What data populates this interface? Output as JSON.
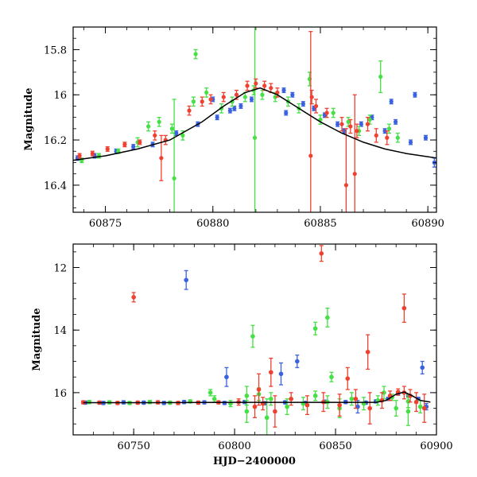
{
  "chart_data": [
    {
      "type": "scatter",
      "title": "",
      "xlabel": "",
      "ylabel": "Magnitude",
      "xlim": [
        60873.5,
        60890.4
      ],
      "ylim": [
        16.52,
        15.7
      ],
      "y_inverted": true,
      "grid": false,
      "x_ticks": [
        60875,
        60880,
        60885,
        60890
      ],
      "x_tick_labels": [
        "60875",
        "60880",
        "60885",
        "60890"
      ],
      "y_ticks": [
        15.8,
        16,
        16.2,
        16.4
      ],
      "y_tick_labels": [
        "15.8",
        "16",
        "16.2",
        "16.4"
      ],
      "model_curve": {
        "color": "#000000",
        "x": [
          60873.5,
          60875,
          60876.5,
          60878,
          60879.5,
          60880.5,
          60881.5,
          60882.2,
          60883,
          60884,
          60885,
          60886,
          60887,
          60888,
          60889,
          60890.4
        ],
        "y": [
          16.29,
          16.27,
          16.24,
          16.2,
          16.12,
          16.05,
          15.99,
          15.97,
          16.0,
          16.06,
          16.12,
          16.17,
          16.21,
          16.24,
          16.26,
          16.28
        ]
      },
      "series": [
        {
          "color": "#3a62e0",
          "x": [
            60873.7,
            60874.5,
            60875.5,
            60876.3,
            60877.2,
            60878.3,
            60879.3,
            60880.2,
            60880.8,
            60881.3,
            60881.8,
            60883.3,
            60883.7,
            60884.2,
            60884.7,
            60885.2,
            60885.8,
            60886.1,
            60886.9,
            60887.4,
            60888.0,
            60888.5,
            60889.2,
            60889.9,
            60890.3,
            60880.0,
            60881.0,
            60883.4,
            60888.3,
            60889.4
          ],
          "y": [
            16.28,
            16.27,
            16.25,
            16.23,
            16.22,
            16.17,
            16.13,
            16.1,
            16.07,
            16.05,
            16.02,
            15.98,
            16.0,
            16.04,
            16.06,
            16.09,
            16.13,
            16.16,
            16.13,
            16.1,
            16.16,
            16.12,
            16.21,
            16.19,
            16.3,
            16.02,
            16.06,
            16.08,
            16.03,
            16.0
          ],
          "err": [
            0.01,
            0.01,
            0.01,
            0.01,
            0.01,
            0.01,
            0.01,
            0.01,
            0.01,
            0.01,
            0.01,
            0.01,
            0.01,
            0.01,
            0.01,
            0.01,
            0.01,
            0.01,
            0.01,
            0.01,
            0.01,
            0.01,
            0.01,
            0.01,
            0.02,
            0.01,
            0.01,
            0.01,
            0.01,
            0.01
          ]
        },
        {
          "color": "#44e044",
          "x": [
            60873.9,
            60874.7,
            60875.6,
            60876.5,
            60877.0,
            60877.5,
            60878.1,
            60878.6,
            60879.1,
            60879.7,
            60880.4,
            60880.9,
            60881.5,
            60881.9,
            60882.3,
            60882.9,
            60883.5,
            60884.0,
            60884.5,
            60885.0,
            60885.6,
            60886.3,
            60886.8,
            60887.3,
            60887.8,
            60888.2,
            60888.6,
            60878.2,
            60881.95,
            60879.2
          ],
          "y": [
            16.29,
            16.27,
            16.25,
            16.21,
            16.14,
            16.12,
            16.15,
            16.18,
            16.03,
            15.99,
            16.06,
            16.03,
            16.01,
            15.98,
            16.0,
            16.01,
            16.03,
            16.06,
            15.93,
            16.11,
            16.08,
            16.12,
            16.16,
            16.11,
            15.92,
            16.15,
            16.19,
            16.37,
            16.19,
            15.82
          ],
          "err": [
            0.01,
            0.01,
            0.01,
            0.02,
            0.02,
            0.02,
            0.02,
            0.02,
            0.02,
            0.02,
            0.02,
            0.02,
            0.02,
            0.02,
            0.02,
            0.02,
            0.02,
            0.02,
            0.03,
            0.02,
            0.02,
            0.02,
            0.02,
            0.02,
            0.07,
            0.02,
            0.02,
            0.35,
            0.6,
            0.02
          ]
        },
        {
          "color": "#f04030",
          "x": [
            60873.8,
            60874.4,
            60875.1,
            60875.9,
            60876.6,
            60877.3,
            60877.8,
            60878.9,
            60879.5,
            60879.9,
            60880.5,
            60881.1,
            60881.6,
            60882.0,
            60882.4,
            60882.7,
            60883.0,
            60884.6,
            60884.8,
            60885.3,
            60886.0,
            60886.4,
            60886.7,
            60887.2,
            60887.6,
            60888.1,
            60877.6,
            60884.55,
            60886.6,
            60886.2
          ],
          "y": [
            16.27,
            16.26,
            16.24,
            16.22,
            16.21,
            16.18,
            16.2,
            16.07,
            16.03,
            16.02,
            16.01,
            16.0,
            15.96,
            15.95,
            15.96,
            15.97,
            15.99,
            16.01,
            16.05,
            16.08,
            16.13,
            16.14,
            16.16,
            16.13,
            16.18,
            16.19,
            16.28,
            16.27,
            16.35,
            16.4
          ],
          "err": [
            0.01,
            0.01,
            0.01,
            0.01,
            0.01,
            0.02,
            0.02,
            0.02,
            0.02,
            0.02,
            0.02,
            0.02,
            0.02,
            0.02,
            0.02,
            0.02,
            0.02,
            0.03,
            0.03,
            0.02,
            0.03,
            0.03,
            0.03,
            0.03,
            0.03,
            0.03,
            0.1,
            0.55,
            0.35,
            0.25
          ]
        }
      ]
    },
    {
      "type": "scatter",
      "title": "",
      "xlabel": "HJD−2400000",
      "ylabel": "Magnitude",
      "xlim": [
        60720,
        60900
      ],
      "ylim": [
        17.35,
        11.25
      ],
      "y_inverted": true,
      "grid": false,
      "x_ticks": [
        60750,
        60800,
        60850,
        60900
      ],
      "x_tick_labels": [
        "60750",
        "60800",
        "60850",
        "60900"
      ],
      "y_ticks": [
        12,
        14,
        16
      ],
      "y_tick_labels": [
        "12",
        "14",
        "16"
      ],
      "model_curve": {
        "color": "#000000",
        "x": [
          60725,
          60760,
          60800,
          60840,
          60870,
          60875,
          60880,
          60884,
          60888,
          60892,
          60897
        ],
        "y": [
          16.32,
          16.32,
          16.31,
          16.31,
          16.31,
          16.25,
          16.05,
          15.98,
          16.1,
          16.25,
          16.3
        ]
      },
      "series": [
        {
          "color": "#3a62e0",
          "x": [
            60726,
            60735,
            60745,
            60755,
            60765,
            60775,
            60785,
            60795,
            60805,
            60815,
            60825,
            60835,
            60845,
            60855,
            60865,
            60870,
            60876,
            60881,
            60886,
            60891,
            60895,
            60776,
            60796,
            60823,
            60831,
            60861,
            60893
          ],
          "y": [
            16.32,
            16.33,
            16.31,
            16.32,
            16.33,
            16.3,
            16.31,
            16.33,
            16.3,
            16.34,
            16.31,
            16.33,
            16.29,
            16.3,
            16.32,
            16.28,
            16.2,
            16.03,
            16.1,
            16.2,
            16.45,
            12.4,
            15.5,
            15.4,
            15.0,
            16.45,
            15.2
          ],
          "err": [
            0.05,
            0.05,
            0.05,
            0.05,
            0.05,
            0.05,
            0.05,
            0.05,
            0.05,
            0.05,
            0.05,
            0.05,
            0.05,
            0.05,
            0.05,
            0.05,
            0.05,
            0.05,
            0.05,
            0.05,
            0.1,
            0.3,
            0.3,
            0.35,
            0.2,
            0.2,
            0.2
          ]
        },
        {
          "color": "#44e044",
          "x": [
            60728,
            60738,
            60748,
            60758,
            60768,
            60778,
            60788,
            60798,
            60806,
            60812,
            60818,
            60826,
            60834,
            60840,
            60846,
            60852,
            60858,
            60864,
            60871,
            60878,
            60886,
            60892,
            60809,
            60846,
            60840,
            60848,
            60816,
            60874,
            60886,
            60806,
            60790,
            60880
          ],
          "y": [
            16.3,
            16.31,
            16.33,
            16.3,
            16.32,
            16.28,
            16.0,
            16.35,
            16.6,
            16.05,
            16.2,
            16.45,
            16.35,
            16.1,
            16.3,
            16.5,
            16.2,
            16.35,
            16.25,
            16.15,
            16.28,
            16.45,
            14.2,
            13.6,
            13.95,
            15.5,
            16.8,
            16.0,
            16.6,
            16.1,
            16.2,
            16.5
          ],
          "err": [
            0.05,
            0.05,
            0.05,
            0.05,
            0.05,
            0.05,
            0.1,
            0.1,
            0.35,
            0.2,
            0.2,
            0.25,
            0.2,
            0.15,
            0.2,
            0.3,
            0.2,
            0.2,
            0.15,
            0.1,
            0.2,
            0.2,
            0.35,
            0.3,
            0.2,
            0.15,
            0.6,
            0.2,
            0.45,
            0.3,
            0.1,
            0.25
          ]
        },
        {
          "color": "#f04030",
          "x": [
            60725,
            60733,
            60742,
            60752,
            60762,
            60772,
            60782,
            60792,
            60802,
            60810,
            60814,
            60820,
            60828,
            60836,
            60844,
            60852,
            60860,
            60867,
            60873,
            60877,
            60881,
            60884,
            60887,
            60890,
            60894,
            60750,
            60843,
            60818,
            60866,
            60884,
            60856,
            60812
          ],
          "y": [
            16.31,
            16.32,
            16.33,
            16.32,
            16.31,
            16.33,
            16.32,
            16.31,
            16.3,
            16.45,
            16.35,
            16.6,
            16.2,
            16.4,
            16.3,
            16.4,
            16.2,
            16.5,
            16.25,
            16.1,
            15.98,
            16.0,
            16.1,
            16.3,
            16.5,
            12.95,
            11.55,
            15.35,
            14.7,
            13.3,
            15.55,
            15.9
          ],
          "err": [
            0.05,
            0.05,
            0.05,
            0.05,
            0.05,
            0.05,
            0.05,
            0.05,
            0.1,
            0.35,
            0.2,
            0.5,
            0.2,
            0.3,
            0.3,
            0.35,
            0.3,
            0.5,
            0.25,
            0.15,
            0.1,
            0.2,
            0.2,
            0.3,
            0.45,
            0.15,
            0.25,
            0.45,
            0.55,
            0.45,
            0.35,
            0.5
          ]
        }
      ]
    }
  ]
}
